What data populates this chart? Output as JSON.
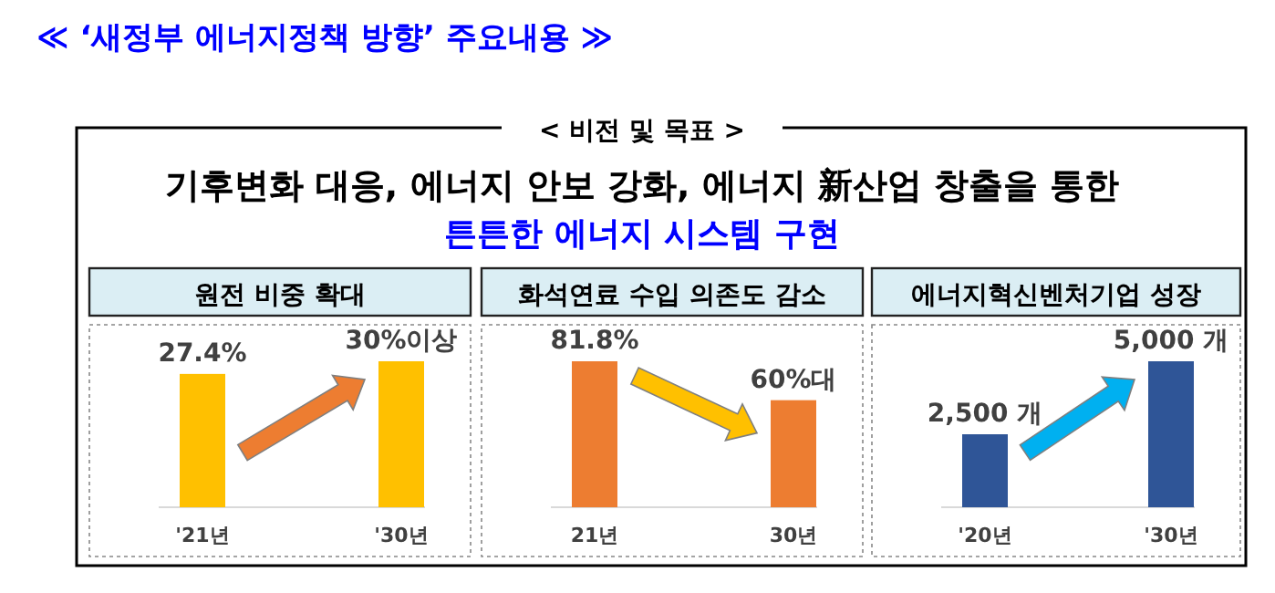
{
  "chart_data": [
    {
      "type": "other",
      "title": "≪ ‘새정부 에너지정책 방향’ 주요내용 ≫",
      "subtitle": "< 비전 및 목표 >",
      "annotations": [
        "기후변화 대응, 에너지 안보 강화, 에너지 新산업 창출을 통한",
        "튼튼한 에너지 시스템 구현"
      ]
    },
    {
      "type": "bar",
      "title": "원전 비중 확대",
      "categories": [
        "'21년",
        "'30년"
      ],
      "values": [
        27.4,
        30
      ],
      "colors": [
        "#ffc000",
        "#ffc000"
      ],
      "value_labels": [
        "27.4%",
        "30%이상"
      ]
    },
    {
      "type": "bar",
      "title": "화석연료 수입 의존도 감소",
      "categories": [
        "21년",
        "30년"
      ],
      "values": [
        81.8,
        60
      ],
      "colors": [
        "#ed7d31",
        "#ed7d31"
      ],
      "value_labels": [
        "81.8%",
        "60%대"
      ]
    },
    {
      "type": "bar",
      "title": "에너지혁신벤처기업 성장",
      "categories": [
        "'20년",
        "'30년"
      ],
      "values": [
        2500,
        5000
      ],
      "colors": [
        "#2f5597",
        "#2f5597"
      ],
      "value_labels": [
        "2,500 개",
        "5,000 개"
      ]
    }
  ]
}
